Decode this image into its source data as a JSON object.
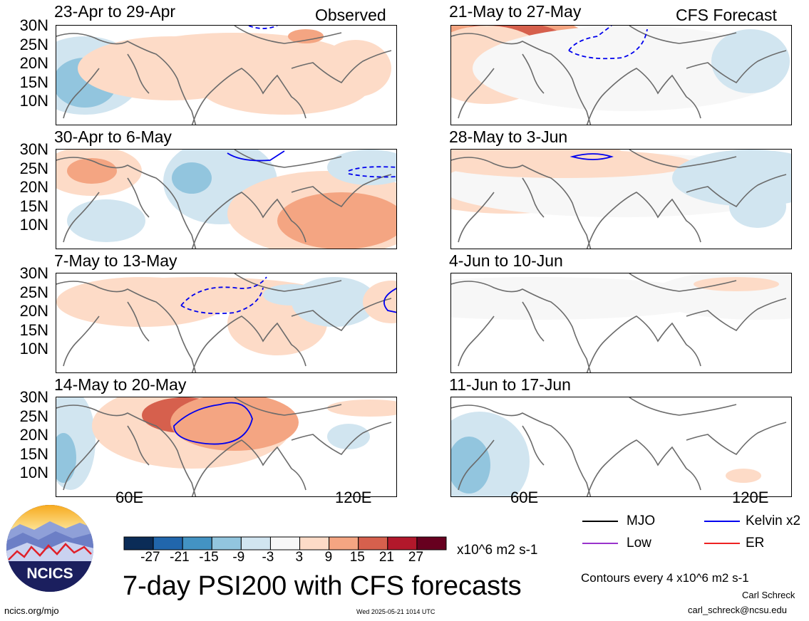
{
  "header": {
    "left_label": "Observed",
    "right_label": "CFS Forecast"
  },
  "footer": {
    "title": "7-day PSI200 with CFS forecasts",
    "website": "ncics.org/mjo",
    "timestamp": "Wed 2025-05-21 1014 UTC",
    "contours_note": "Contours every 4 x10^6 m2 s-1",
    "author": "Carl Schreck",
    "email": "carl_schreck@ncsu.edu",
    "logo_text": "NCICS"
  },
  "chart_data": {
    "type": "map-panels",
    "variable": "PSI200",
    "yticks": [
      "30N",
      "25N",
      "20N",
      "15N",
      "10N"
    ],
    "xticks": [
      "60E",
      "120E"
    ],
    "panels": [
      {
        "title": "23-Apr to 29-Apr",
        "group": "Observed"
      },
      {
        "title": "30-Apr to 6-May",
        "group": "Observed"
      },
      {
        "title": "7-May to 13-May",
        "group": "Observed"
      },
      {
        "title": "14-May to 20-May",
        "group": "Observed"
      },
      {
        "title": "21-May to 27-May",
        "group": "CFS Forecast"
      },
      {
        "title": "28-May to 3-Jun",
        "group": "CFS Forecast"
      },
      {
        "title": "4-Jun to 10-Jun",
        "group": "CFS Forecast"
      },
      {
        "title": "11-Jun to 17-Jun",
        "group": "CFS Forecast"
      }
    ],
    "colorbar": {
      "ticks": [
        "-27",
        "-21",
        "-15",
        "-9",
        "-3",
        "3",
        "9",
        "15",
        "21",
        "27"
      ],
      "colors": [
        "#0b2c57",
        "#2166ac",
        "#4393c3",
        "#92c5de",
        "#d1e5f0",
        "#f7f7f7",
        "#fddbc7",
        "#f4a582",
        "#d6604d",
        "#b2182b",
        "#67001f"
      ],
      "units": "x10^6 m2 s-1"
    },
    "legend": [
      {
        "label": "MJO",
        "color": "#000000"
      },
      {
        "label": "Kelvin x2",
        "color": "#0000ee"
      },
      {
        "label": "Low",
        "color": "#9933cc"
      },
      {
        "label": "ER",
        "color": "#ee2222"
      }
    ]
  }
}
